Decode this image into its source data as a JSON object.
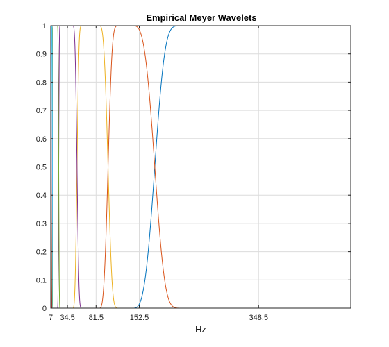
{
  "chart_data": {
    "type": "line",
    "title": "Empirical Meyer Wavelets",
    "xlabel": "Hz",
    "ylabel": "",
    "xlim": [
      7,
      500
    ],
    "ylim": [
      0,
      1
    ],
    "xticks": [
      7,
      34.5,
      81.5,
      152.5,
      348.5
    ],
    "xtick_labels": [
      "7",
      "34.5",
      "81.5",
      "152.5",
      "348.5"
    ],
    "yticks": [
      0,
      0.1,
      0.2,
      0.3,
      0.4,
      0.5,
      0.6,
      0.7,
      0.8,
      0.9,
      1
    ],
    "ytick_labels": [
      "0",
      "0.1",
      "0.2",
      "0.3",
      "0.4",
      "0.5",
      "0.6",
      "0.7",
      "0.8",
      "0.9",
      "1"
    ],
    "grid": true,
    "legend": "none",
    "series": [
      {
        "color": "#0072BD",
        "rise": [
          140,
          230
        ],
        "fall": null
      },
      {
        "color": "#D95319",
        "rise": [
          86,
          122
        ],
        "fall": [
          140,
          230
        ]
      },
      {
        "color": "#EDB120",
        "rise": [
          43,
          60
        ],
        "fall": [
          86,
          122
        ]
      },
      {
        "color": "#7E2F8E",
        "rise": [
          18,
          23
        ],
        "fall": [
          43,
          60
        ]
      },
      {
        "color": "#77AC30",
        "rise": [
          9,
          11
        ],
        "fall": [
          18,
          23
        ]
      },
      {
        "color": "#4DBEEE",
        "rise": [
          7,
          9
        ],
        "fall": [
          9,
          11
        ]
      },
      {
        "color": "#A2142F",
        "rise": [
          7,
          7.5
        ],
        "fall": [
          7,
          9
        ]
      }
    ]
  }
}
